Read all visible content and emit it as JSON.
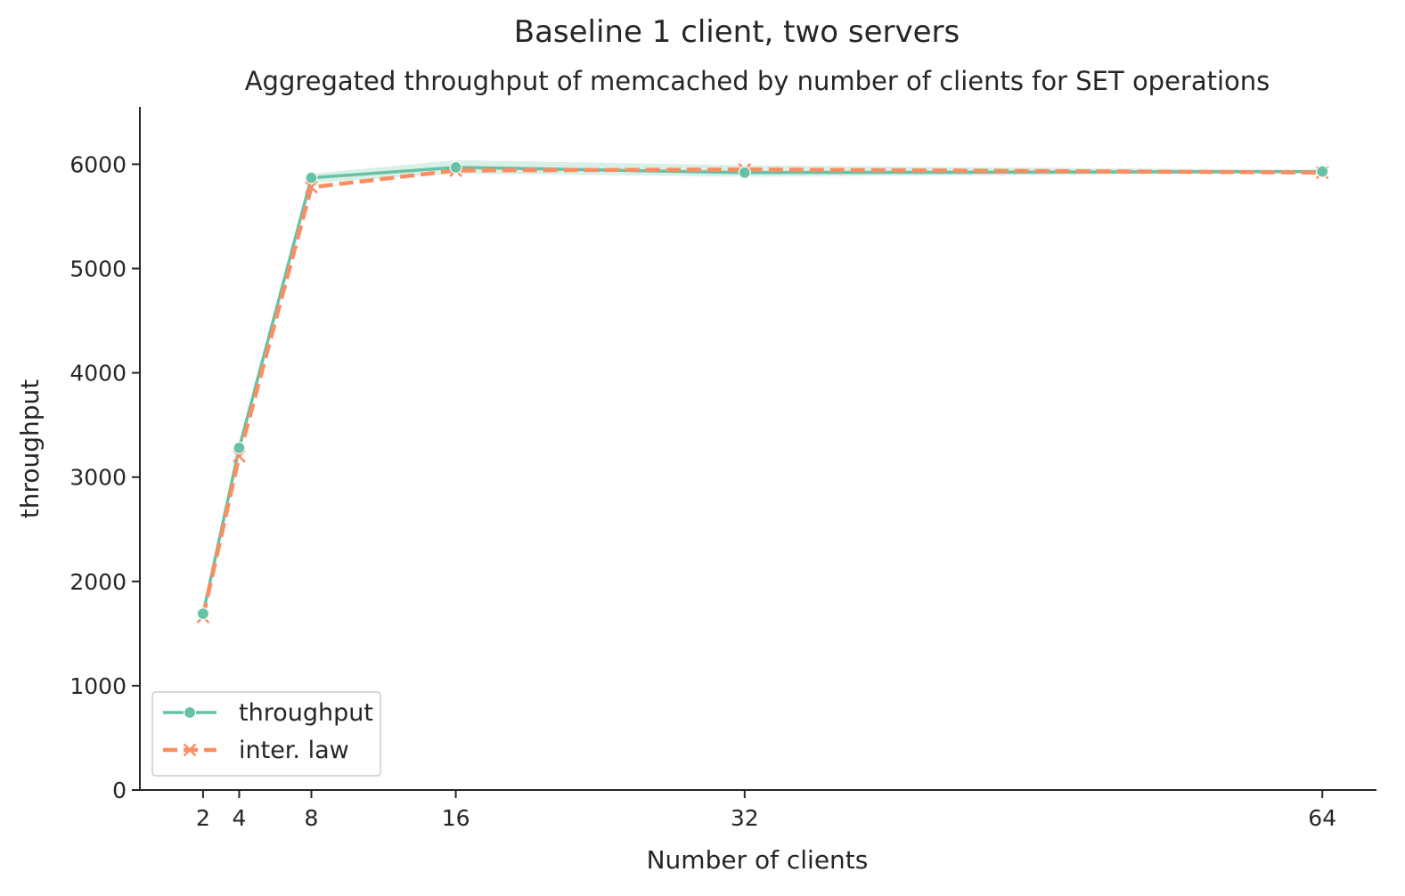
{
  "chart_data": {
    "type": "line",
    "suptitle": "Baseline 1 client, two servers",
    "title": "Aggregated throughput of memcached by number of clients for SET operations",
    "xlabel": "Number of clients",
    "ylabel": "throughput",
    "x": [
      2,
      4,
      8,
      16,
      32,
      64
    ],
    "xticks": [
      2,
      4,
      8,
      16,
      32,
      64
    ],
    "yticks": [
      0,
      1000,
      2000,
      3000,
      4000,
      5000,
      6000
    ],
    "xlim": [
      -1.5,
      67
    ],
    "ylim": [
      0,
      6550
    ],
    "grid": false,
    "legend_position": "lower-left",
    "series": [
      {
        "name": "throughput",
        "values": [
          1690,
          3280,
          5870,
          5970,
          5920,
          5930
        ],
        "ci_low": [
          1670,
          3250,
          5820,
          5910,
          5880,
          5915
        ],
        "ci_high": [
          1710,
          3310,
          5910,
          6040,
          5990,
          5945
        ],
        "color": "#66c2a5",
        "marker": "circle",
        "dash": "solid"
      },
      {
        "name": "inter. law",
        "values": [
          1660,
          3200,
          5780,
          5940,
          5950,
          5920
        ],
        "color": "#fc8d62",
        "marker": "x",
        "dash": "dashed"
      }
    ]
  }
}
